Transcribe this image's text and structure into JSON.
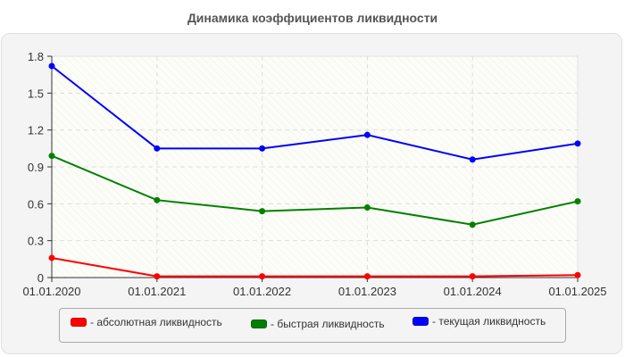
{
  "title": "Динамика коэффициентов ликвидности",
  "chart_data": {
    "type": "line",
    "title": "Динамика коэффициентов ликвидности",
    "xlabel": "",
    "ylabel": "",
    "categories": [
      "01.01.2020",
      "01.01.2021",
      "01.01.2022",
      "01.01.2023",
      "01.01.2024",
      "01.01.2025"
    ],
    "yticks": [
      "0",
      "0.3",
      "0.6",
      "0.9",
      "1.2",
      "1.5",
      "1.8"
    ],
    "ylim": [
      0,
      1.8
    ],
    "grid": true,
    "legend_position": "bottom",
    "series": [
      {
        "name": "- абсолютная ликвидность",
        "color": "#ff0000",
        "values": [
          0.16,
          0.01,
          0.01,
          0.01,
          0.01,
          0.02
        ]
      },
      {
        "name": "- быстрая ликвидность",
        "color": "#008000",
        "values": [
          0.99,
          0.63,
          0.54,
          0.57,
          0.43,
          0.62
        ]
      },
      {
        "name": "- текущая ликвидность",
        "color": "#0000ff",
        "values": [
          1.72,
          1.05,
          1.05,
          1.16,
          0.96,
          1.09
        ]
      }
    ]
  },
  "legend": {
    "items": [
      {
        "label": "- абсолютная ликвидность",
        "color": "#ff0000"
      },
      {
        "label": "- быстрая ликвидность",
        "color": "#008000"
      },
      {
        "label": "- текущая ликвидность",
        "color": "#0000ff"
      }
    ]
  }
}
